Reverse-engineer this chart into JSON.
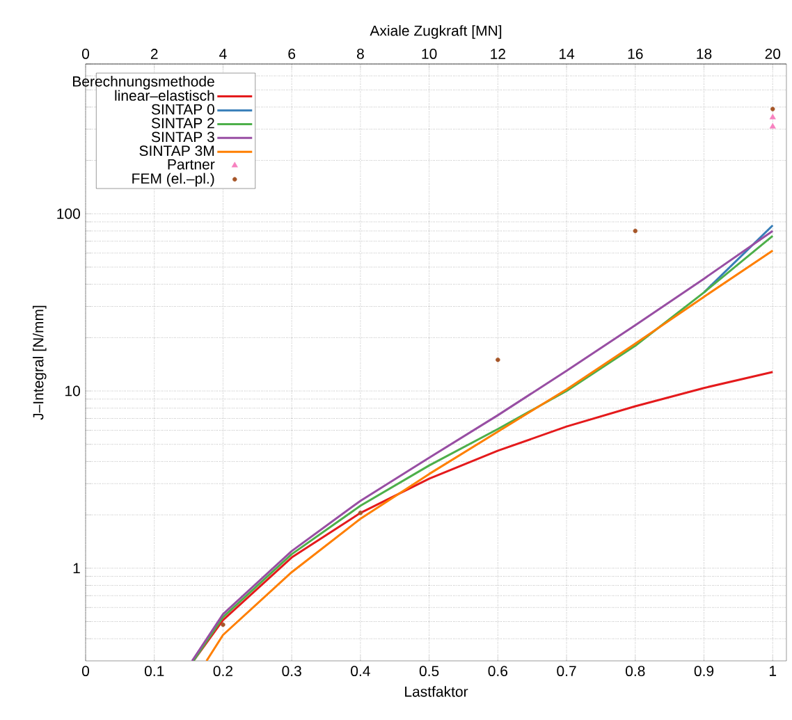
{
  "chart_data": {
    "type": "line",
    "xlabel": "Lastfaktor",
    "x2label": "Axiale Zugkraft [MN]",
    "ylabel": "J–Integral [N/mm]",
    "legend_title": "Berechnungsmethode",
    "legend": "top left",
    "grid": true,
    "log": "y",
    "xlim": [
      0,
      1.02
    ],
    "xticks": [
      0,
      0.1,
      0.2,
      0.3,
      0.4,
      0.5,
      0.6,
      0.7,
      0.8,
      0.9,
      1
    ],
    "x2lim": [
      0,
      20.4
    ],
    "x2ticks": [
      0,
      2,
      4,
      6,
      8,
      10,
      12,
      14,
      16,
      18,
      20
    ],
    "ylim": [
      0.3,
      700
    ],
    "yticks": [
      {
        "value": 0.4,
        "label": null
      },
      {
        "value": 0.5,
        "label": null
      },
      {
        "value": 0.6,
        "label": null
      },
      {
        "value": 0.7,
        "label": null
      },
      {
        "value": 0.8,
        "label": null
      },
      {
        "value": 0.9,
        "label": null
      },
      1,
      {
        "value": 2,
        "label": null
      },
      {
        "value": 3,
        "label": null
      },
      {
        "value": 4,
        "label": null
      },
      {
        "value": 5,
        "label": null
      },
      {
        "value": 6,
        "label": null
      },
      {
        "value": 7,
        "label": null
      },
      {
        "value": 8,
        "label": null
      },
      {
        "value": 9,
        "label": null
      },
      10,
      {
        "value": 20,
        "label": null
      },
      {
        "value": 30,
        "label": null
      },
      {
        "value": 40,
        "label": null
      },
      {
        "value": 50,
        "label": null
      },
      {
        "value": 60,
        "label": null
      },
      {
        "value": 70,
        "label": null
      },
      {
        "value": 80,
        "label": null
      },
      {
        "value": 90,
        "label": null
      },
      100,
      {
        "value": 200,
        "label": null
      },
      {
        "value": 300,
        "label": null
      },
      {
        "value": 400,
        "label": null
      },
      {
        "value": 500,
        "label": null
      },
      {
        "value": 600,
        "label": null
      },
      {
        "value": 700,
        "label": null
      }
    ],
    "series": [
      {
        "name": "linear–elastisch",
        "color": "#e41a1c",
        "x": [
          0.157,
          0.2,
          0.3,
          0.4,
          0.5,
          0.6,
          0.7,
          0.8,
          0.9,
          1
        ],
        "values": [
          0.3,
          0.51,
          1.15,
          2.05,
          3.2,
          4.6,
          6.3,
          8.2,
          10.4,
          12.8
        ]
      },
      {
        "name": "SINTAP 0",
        "color": "#377eb8",
        "x": [
          0.9,
          1
        ],
        "values": [
          36,
          86
        ]
      },
      {
        "name": "SINTAP 2",
        "color": "#4daf4a",
        "x": [
          0.157,
          0.2,
          0.3,
          0.4,
          0.5,
          0.6,
          0.7,
          0.8,
          0.9,
          1
        ],
        "values": [
          0.3,
          0.53,
          1.2,
          2.25,
          3.8,
          6.1,
          10,
          18,
          36,
          75
        ]
      },
      {
        "name": "SINTAP 3",
        "color": "#984ea3",
        "x": [
          0.155,
          0.2,
          0.3,
          0.4,
          0.5,
          0.6,
          0.7,
          0.8,
          0.9,
          1
        ],
        "values": [
          0.3,
          0.55,
          1.25,
          2.4,
          4.2,
          7.3,
          13,
          23.5,
          43,
          80
        ]
      },
      {
        "name": "SINTAP 3M",
        "color": "#ff7f00",
        "x": [
          0.176,
          0.2,
          0.3,
          0.4,
          0.5,
          0.6,
          0.7,
          0.8,
          0.9,
          1
        ],
        "values": [
          0.3,
          0.42,
          0.95,
          1.9,
          3.4,
          5.9,
          10.2,
          18.5,
          34,
          62
        ]
      },
      {
        "name": "Partner",
        "type": "scatter",
        "marker": "triangle",
        "color": "#f781bf",
        "x": [
          1,
          1
        ],
        "values": [
          350,
          310
        ]
      },
      {
        "name": "FEM (el.–pl.)",
        "type": "scatter",
        "marker": "circle",
        "color": "#a65628",
        "x": [
          0.2,
          0.4,
          0.6,
          0.8,
          1
        ],
        "values": [
          0.48,
          2.05,
          15,
          80,
          390
        ]
      }
    ]
  }
}
